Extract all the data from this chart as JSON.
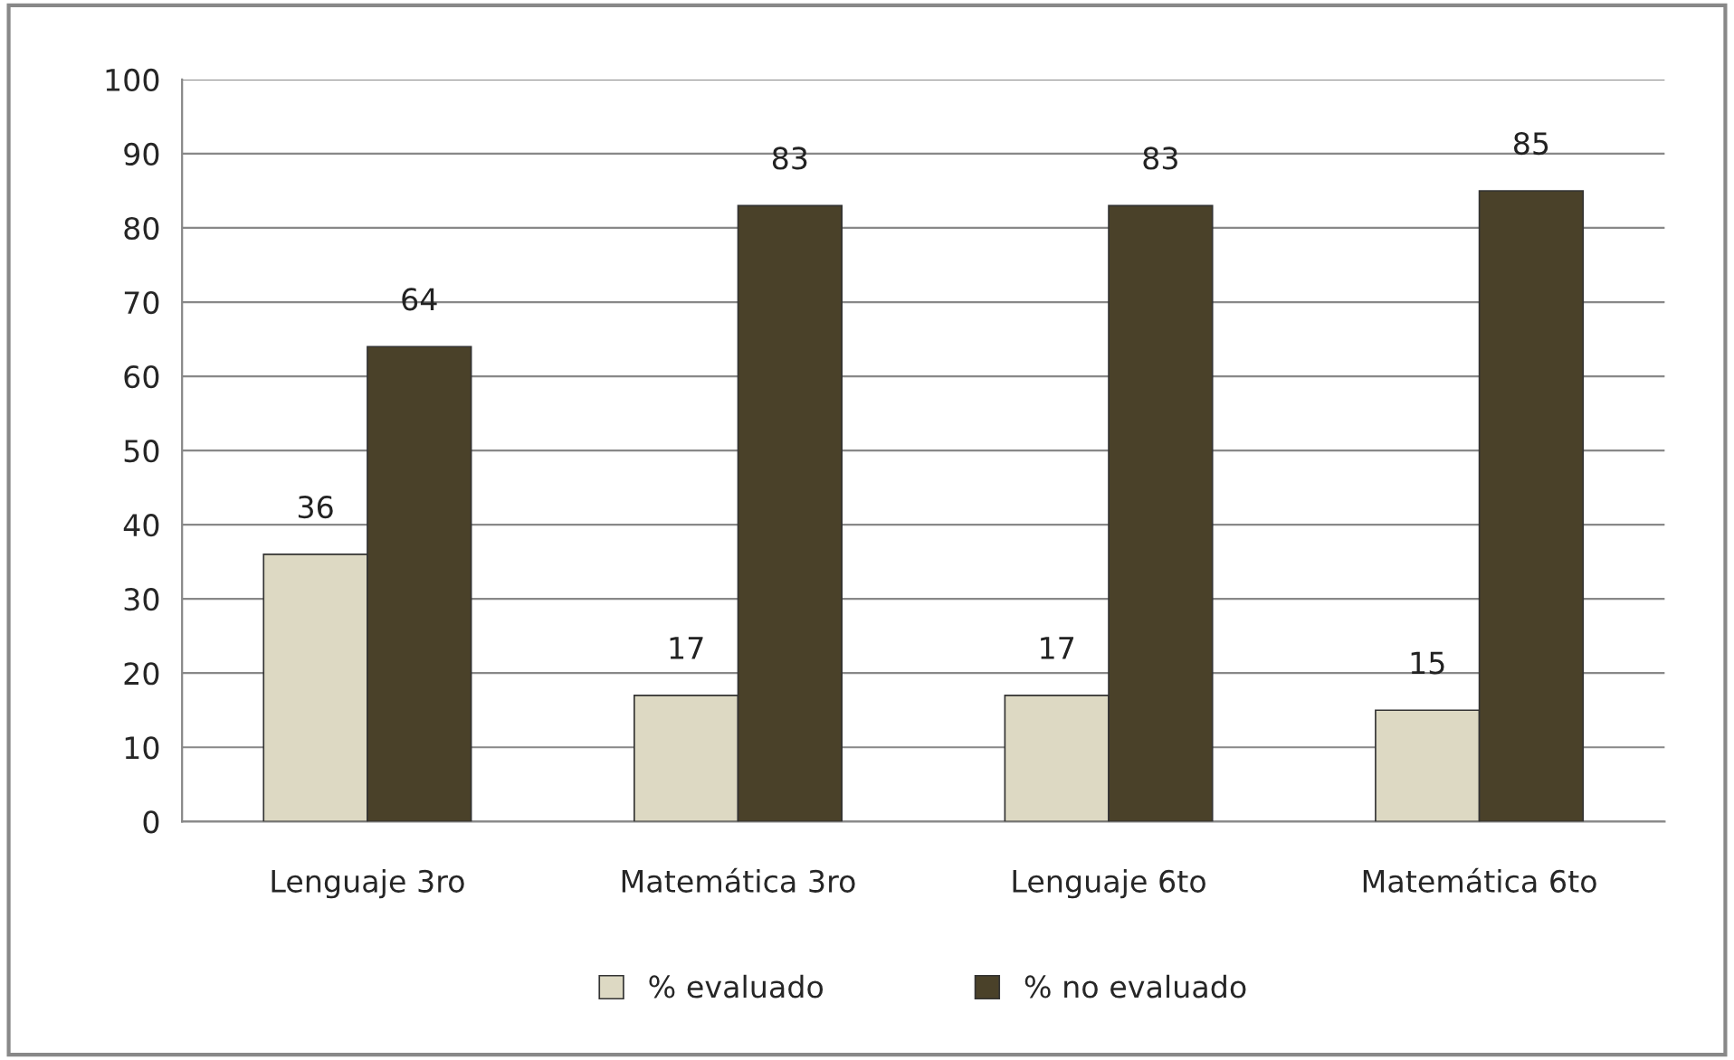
{
  "chart_data": {
    "type": "bar",
    "categories": [
      "Lenguaje 3ro",
      "Matemática 3ro",
      "Lenguaje 6to",
      "Matemática 6to"
    ],
    "series": [
      {
        "name": "% evaluado",
        "color": "#ddd9c3",
        "values": [
          36,
          17,
          17,
          15
        ]
      },
      {
        "name": "% no evaluado",
        "color": "#4a4129",
        "values": [
          64,
          83,
          83,
          85
        ]
      }
    ],
    "ylim": [
      0,
      100
    ],
    "yticks": [
      0,
      10,
      20,
      30,
      40,
      50,
      60,
      70,
      80,
      90,
      100
    ],
    "grid": "y",
    "legend": "bottom",
    "data_labels": true
  }
}
